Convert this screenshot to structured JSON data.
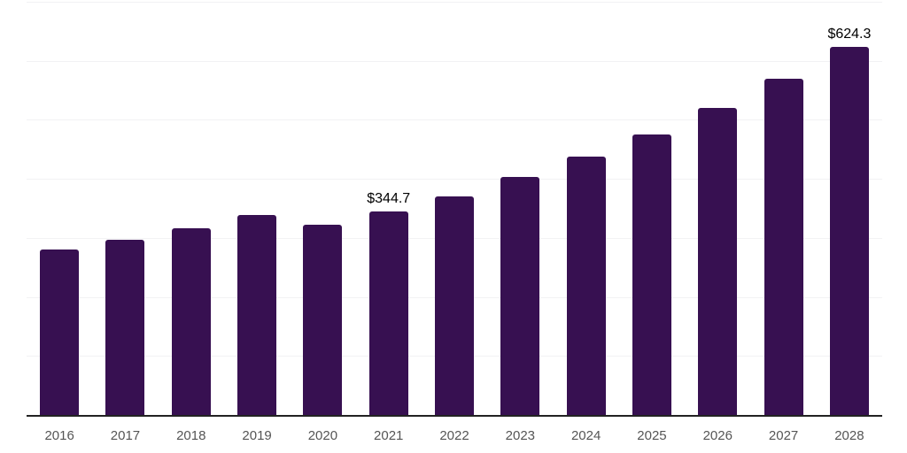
{
  "chart_data": {
    "type": "bar",
    "title": "",
    "xlabel": "",
    "ylabel": "",
    "categories": [
      "2016",
      "2017",
      "2018",
      "2019",
      "2020",
      "2021",
      "2022",
      "2023",
      "2024",
      "2025",
      "2026",
      "2027",
      "2028"
    ],
    "values": [
      280.7,
      297.2,
      316.6,
      339.1,
      322.6,
      344.7,
      370.5,
      403.4,
      437.9,
      475.3,
      520.2,
      569.6,
      624.3
    ],
    "bar_labels": [
      "",
      "",
      "",
      "",
      "",
      "$344.7",
      "",
      "",
      "",
      "",
      "",
      "",
      "$624.3"
    ],
    "ylim": [
      0,
      700
    ],
    "gridline_values": [
      100,
      200,
      300,
      400,
      500,
      600,
      700
    ],
    "grid": "horizontal",
    "legend": "none",
    "colors": {
      "bar": "#371051",
      "axis_line": "#222222",
      "gridline": "#f2f2f4",
      "tick_label": "#555555",
      "data_label": "#000000"
    }
  }
}
